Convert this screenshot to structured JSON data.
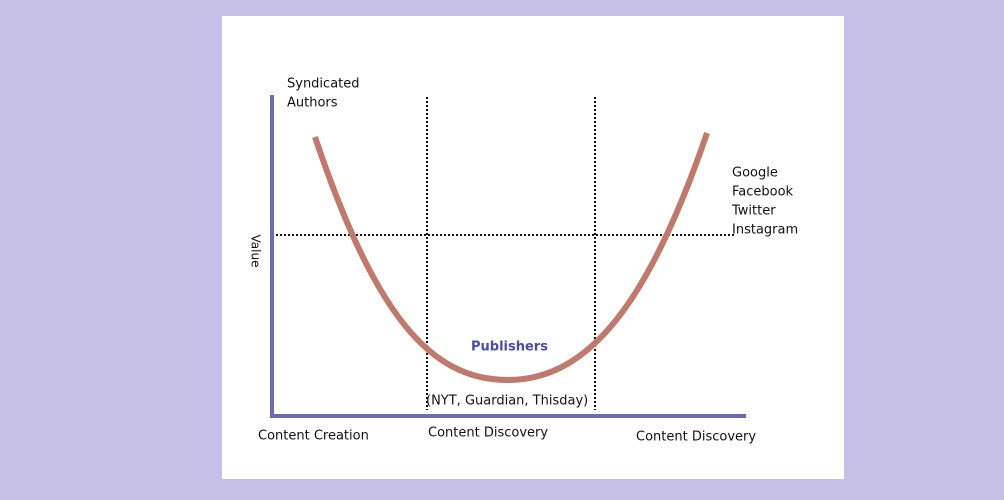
{
  "diagram": {
    "top_left_label": [
      "Syndicated",
      "Authors"
    ],
    "right_label": [
      "Google",
      "Facebook",
      "Twitter",
      "Instagram"
    ],
    "y_axis_label": "Value",
    "center_label": "Publishers",
    "center_sublabel": "(NYT, Guardian, Thisday)",
    "x_labels": [
      "Content Creation",
      "Content Discovery",
      "Content Discovery"
    ]
  }
}
